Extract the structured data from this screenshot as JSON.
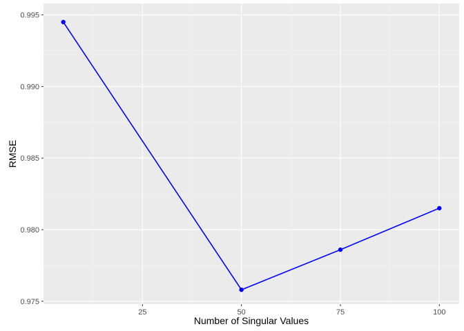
{
  "chart_data": {
    "type": "line",
    "title": "",
    "xlabel": "Number of Singular Values",
    "ylabel": "RMSE",
    "x": [
      5,
      50,
      75,
      100
    ],
    "series": [
      {
        "values": [
          0.9945,
          0.9758,
          0.9786,
          0.9815
        ]
      }
    ],
    "xlim": [
      0,
      105
    ],
    "ylim": [
      0.975,
      0.995
    ],
    "x_ticks": [
      25,
      50,
      75,
      100
    ],
    "x_tick_labels": [
      "25",
      "50",
      "75",
      "100"
    ],
    "y_ticks": [
      0.975,
      0.98,
      0.985,
      0.99,
      0.995
    ],
    "y_tick_labels": [
      "0.975",
      "0.980",
      "0.985",
      "0.990",
      "0.995"
    ],
    "grid": true,
    "legend": "none",
    "colors": {
      "panel_background": "#ebebeb",
      "grid_major": "#ffffff",
      "grid_minor": "#f5f5f5",
      "line": "#0000ff",
      "point": "#0000ff"
    }
  }
}
